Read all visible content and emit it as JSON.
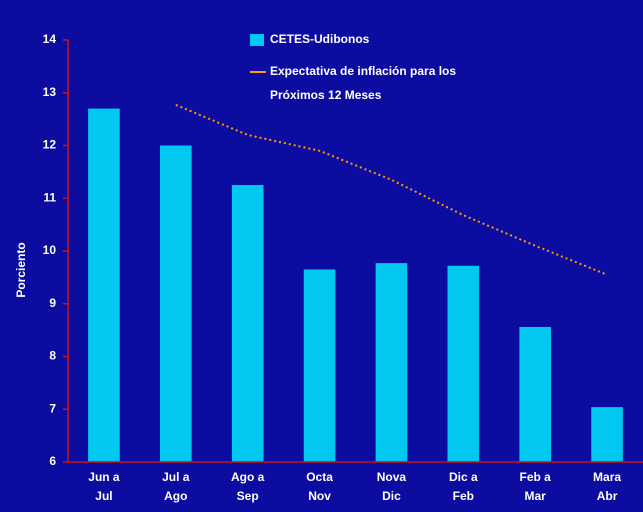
{
  "chart_data": {
    "type": "bar",
    "y_label": "Porciento",
    "categories": [
      [
        "Jun a",
        "Jul"
      ],
      [
        "Jul a",
        "Ago"
      ],
      [
        "Ago a",
        "Sep"
      ],
      [
        "Octa",
        "Nov"
      ],
      [
        "Nova",
        "Dic"
      ],
      [
        "Dic a",
        "Feb"
      ],
      [
        "Feb a",
        "Mar"
      ],
      [
        "Mara",
        "Abr"
      ]
    ],
    "series": [
      {
        "name": "CETES-Udibonos",
        "type": "bar",
        "color": "#00c8f0",
        "values": [
          12.7,
          12.0,
          11.25,
          9.65,
          9.77,
          9.72,
          8.56,
          7.04
        ]
      },
      {
        "name": [
          "Expectativa de inflación para los",
          "Próximos 12 Meses"
        ],
        "type": "line",
        "color": "#ff9900",
        "values": [
          null,
          12.77,
          12.2,
          11.9,
          11.35,
          10.68,
          10.1,
          9.55
        ]
      }
    ],
    "ylim": [
      6,
      14
    ],
    "yticks": [
      6,
      7,
      8,
      9,
      10,
      11,
      12,
      13,
      14
    ],
    "axis_color": "#d01010"
  }
}
